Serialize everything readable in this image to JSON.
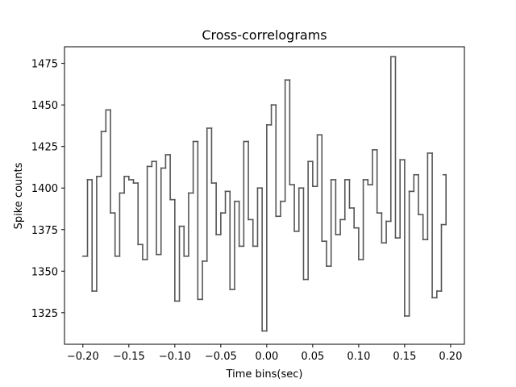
{
  "chart_data": {
    "type": "line",
    "style": "step",
    "title": "Cross-correlograms",
    "xlabel": "Time bins(sec)",
    "ylabel": "Spike counts",
    "xlim": [
      -0.22,
      0.215
    ],
    "ylim": [
      1306,
      1485
    ],
    "grid": false,
    "line_color": "#555555",
    "xticks": [
      {
        "value": -0.2,
        "label": "−0.20"
      },
      {
        "value": -0.15,
        "label": "−0.15"
      },
      {
        "value": -0.1,
        "label": "−0.10"
      },
      {
        "value": -0.05,
        "label": "−0.05"
      },
      {
        "value": 0.0,
        "label": "0.00"
      },
      {
        "value": 0.05,
        "label": "0.05"
      },
      {
        "value": 0.1,
        "label": "0.10"
      },
      {
        "value": 0.15,
        "label": "0.15"
      },
      {
        "value": 0.2,
        "label": "0.20"
      }
    ],
    "yticks": [
      {
        "value": 1325,
        "label": "1325"
      },
      {
        "value": 1350,
        "label": "1350"
      },
      {
        "value": 1375,
        "label": "1375"
      },
      {
        "value": 1400,
        "label": "1400"
      },
      {
        "value": 1425,
        "label": "1425"
      },
      {
        "value": 1450,
        "label": "1450"
      },
      {
        "value": 1475,
        "label": "1475"
      }
    ],
    "x_start": -0.2,
    "x_end": 0.192,
    "bin_width": 0.005,
    "values": [
      1359,
      1405,
      1338,
      1407,
      1434,
      1447,
      1385,
      1359,
      1397,
      1407,
      1405,
      1403,
      1366,
      1357,
      1413,
      1416,
      1360,
      1412,
      1420,
      1393,
      1332,
      1377,
      1359,
      1397,
      1428,
      1333,
      1356,
      1436,
      1403,
      1372,
      1385,
      1398,
      1339,
      1392,
      1365,
      1428,
      1381,
      1365,
      1400,
      1314,
      1438,
      1450,
      1383,
      1392,
      1465,
      1402,
      1374,
      1400,
      1345,
      1416,
      1401,
      1432,
      1368,
      1353,
      1405,
      1372,
      1381,
      1405,
      1388,
      1376,
      1357,
      1405,
      1402,
      1423,
      1385,
      1367,
      1380,
      1479,
      1370,
      1417,
      1323,
      1398,
      1408,
      1384,
      1369,
      1421,
      1334,
      1338,
      1378,
      1408
    ]
  }
}
